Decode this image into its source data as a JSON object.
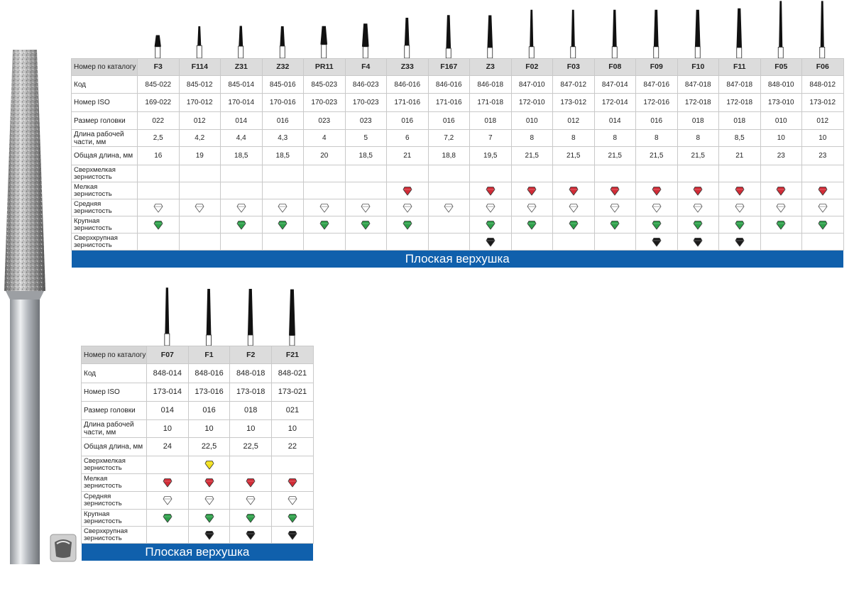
{
  "table1": {
    "row_labels": {
      "catalog": "Номер по каталогу",
      "code": "Код",
      "iso": "Номер ISO",
      "head": "Размер головки",
      "work_len": "Длина рабочей части, мм",
      "total_len": "Общая длина, мм",
      "grit_xfine": "Сверхмелкая зернистость",
      "grit_fine": "Мелкая зернистость",
      "grit_medium": "Средняя зернистость",
      "grit_coarse": "Крупная зернистость",
      "grit_xcoarse": "Сверхкрупная зернистость"
    },
    "banner": "Плоская верхушка",
    "models": [
      {
        "num": "F3",
        "code": "845-022",
        "iso": "169-022",
        "head": "022",
        "work": "2,5",
        "total": "16",
        "xfine": false,
        "fine": false,
        "medium": true,
        "coarse": true,
        "xcoarse": false
      },
      {
        "num": "F114",
        "code": "845-012",
        "iso": "170-012",
        "head": "012",
        "work": "4,2",
        "total": "19",
        "xfine": false,
        "fine": false,
        "medium": true,
        "coarse": false,
        "xcoarse": false
      },
      {
        "num": "Z31",
        "code": "845-014",
        "iso": "170-014",
        "head": "014",
        "work": "4,4",
        "total": "18,5",
        "xfine": false,
        "fine": false,
        "medium": true,
        "coarse": true,
        "xcoarse": false
      },
      {
        "num": "Z32",
        "code": "845-016",
        "iso": "170-016",
        "head": "016",
        "work": "4,3",
        "total": "18,5",
        "xfine": false,
        "fine": false,
        "medium": true,
        "coarse": true,
        "xcoarse": false
      },
      {
        "num": "PR11",
        "code": "845-023",
        "iso": "170-023",
        "head": "023",
        "work": "4",
        "total": "20",
        "xfine": false,
        "fine": false,
        "medium": true,
        "coarse": true,
        "xcoarse": false
      },
      {
        "num": "F4",
        "code": "846-023",
        "iso": "170-023",
        "head": "023",
        "work": "5",
        "total": "18,5",
        "xfine": false,
        "fine": false,
        "medium": true,
        "coarse": true,
        "xcoarse": false
      },
      {
        "num": "Z33",
        "code": "846-016",
        "iso": "171-016",
        "head": "016",
        "work": "6",
        "total": "21",
        "xfine": false,
        "fine": true,
        "medium": true,
        "coarse": true,
        "xcoarse": false
      },
      {
        "num": "F167",
        "code": "846-016",
        "iso": "171-016",
        "head": "016",
        "work": "7,2",
        "total": "18,8",
        "xfine": false,
        "fine": false,
        "medium": true,
        "coarse": false,
        "xcoarse": false
      },
      {
        "num": "Z3",
        "code": "846-018",
        "iso": "171-018",
        "head": "018",
        "work": "7",
        "total": "19,5",
        "xfine": false,
        "fine": true,
        "medium": true,
        "coarse": true,
        "xcoarse": true
      },
      {
        "num": "F02",
        "code": "847-010",
        "iso": "172-010",
        "head": "010",
        "work": "8",
        "total": "21,5",
        "xfine": false,
        "fine": true,
        "medium": true,
        "coarse": true,
        "xcoarse": false
      },
      {
        "num": "F03",
        "code": "847-012",
        "iso": "173-012",
        "head": "012",
        "work": "8",
        "total": "21,5",
        "xfine": false,
        "fine": true,
        "medium": true,
        "coarse": true,
        "xcoarse": false
      },
      {
        "num": "F08",
        "code": "847-014",
        "iso": "172-014",
        "head": "014",
        "work": "8",
        "total": "21,5",
        "xfine": false,
        "fine": true,
        "medium": true,
        "coarse": true,
        "xcoarse": false
      },
      {
        "num": "F09",
        "code": "847-016",
        "iso": "172-016",
        "head": "016",
        "work": "8",
        "total": "21,5",
        "xfine": false,
        "fine": true,
        "medium": true,
        "coarse": true,
        "xcoarse": true
      },
      {
        "num": "F10",
        "code": "847-018",
        "iso": "172-018",
        "head": "018",
        "work": "8",
        "total": "21,5",
        "xfine": false,
        "fine": true,
        "medium": true,
        "coarse": true,
        "xcoarse": true
      },
      {
        "num": "F11",
        "code": "847-018",
        "iso": "172-018",
        "head": "018",
        "work": "8,5",
        "total": "21",
        "xfine": false,
        "fine": true,
        "medium": true,
        "coarse": true,
        "xcoarse": true
      },
      {
        "num": "F05",
        "code": "848-010",
        "iso": "173-010",
        "head": "010",
        "work": "10",
        "total": "23",
        "xfine": false,
        "fine": true,
        "medium": true,
        "coarse": true,
        "xcoarse": false
      },
      {
        "num": "F06",
        "code": "848-012",
        "iso": "173-012",
        "head": "012",
        "work": "10",
        "total": "23",
        "xfine": false,
        "fine": true,
        "medium": true,
        "coarse": true,
        "xcoarse": false
      }
    ]
  },
  "table2": {
    "row_labels": {
      "catalog": "Номер по каталогу",
      "code": "Код",
      "iso": "Номер ISO",
      "head": "Размер головки",
      "work_len": "Длина рабочей части, мм",
      "total_len": "Общая длина, мм",
      "grit_xfine": "Сверхмелкая зернистость",
      "grit_fine": "Мелкая зернистость",
      "grit_medium": "Средняя зернистость",
      "grit_coarse": "Крупная зернистость",
      "grit_xcoarse": "Сверхкрупная зернистость"
    },
    "banner": "Плоская верхушка",
    "models": [
      {
        "num": "F07",
        "code": "848-014",
        "iso": "173-014",
        "head": "014",
        "work": "10",
        "total": "24",
        "xfine": false,
        "fine": true,
        "medium": true,
        "coarse": true,
        "xcoarse": false
      },
      {
        "num": "F1",
        "code": "848-016",
        "iso": "173-016",
        "head": "016",
        "work": "10",
        "total": "22,5",
        "xfine": true,
        "fine": true,
        "medium": true,
        "coarse": true,
        "xcoarse": true
      },
      {
        "num": "F2",
        "code": "848-018",
        "iso": "173-018",
        "head": "018",
        "work": "10",
        "total": "22,5",
        "xfine": false,
        "fine": true,
        "medium": true,
        "coarse": true,
        "xcoarse": true
      },
      {
        "num": "F21",
        "code": "848-021",
        "iso": "173-021",
        "head": "021",
        "work": "10",
        "total": "22",
        "xfine": false,
        "fine": true,
        "medium": true,
        "coarse": true,
        "xcoarse": true
      }
    ]
  },
  "grit_colors": {
    "xfine": "#f2e01a",
    "fine": "#d22b36",
    "medium": "#ffffff",
    "coarse": "#2ea04a",
    "xcoarse": "#1a1a1a"
  },
  "banner_color": "#1060ac"
}
